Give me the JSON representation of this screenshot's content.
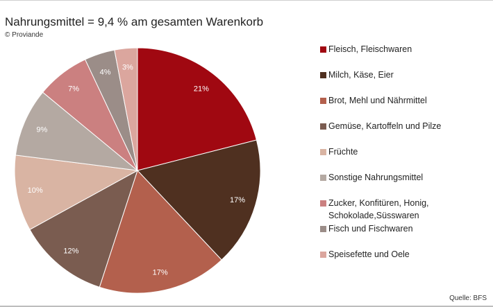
{
  "header": {
    "title": "Nahrungsmittel = 9,4 % am gesamten Warenkorb",
    "credit": "© Proviande"
  },
  "footer": {
    "source": "Quelle: BFS"
  },
  "chart_data": {
    "type": "pie",
    "title": "Nahrungsmittel = 9,4 % am gesamten Warenkorb",
    "legend_position": "right",
    "start": "12 o'clock, clockwise",
    "slices": [
      {
        "label": "Fleisch, Fleischwaren",
        "value": 21,
        "display": "21%",
        "color": "#a00811",
        "label_color": "#ffffff"
      },
      {
        "label": "Milch, Käse, Eier",
        "value": 17,
        "display": "17%",
        "color": "#4f3020",
        "label_color": "#ffffff"
      },
      {
        "label": "Brot, Mehl und Nährmittel",
        "value": 17,
        "display": "17%",
        "color": "#b3604d",
        "label_color": "#ffffff"
      },
      {
        "label": "Gemüse, Kartoffeln und Pilze",
        "value": 12,
        "display": "12%",
        "color": "#7a5c50",
        "label_color": "#ffffff"
      },
      {
        "label": "Früchte",
        "value": 10,
        "display": "10%",
        "color": "#d9b4a3",
        "label_color": "#ffffff"
      },
      {
        "label": "Sonstige Nahrungsmittel",
        "value": 9,
        "display": "9%",
        "color": "#b4a9a2",
        "label_color": "#ffffff"
      },
      {
        "label": "Zucker, Konfitüren, Honig, Schokolade,Süsswaren",
        "value": 7,
        "display": "7%",
        "color": "#cb8080",
        "label_color": "#ffffff"
      },
      {
        "label": "Fisch und Fischwaren",
        "value": 4,
        "display": "4%",
        "color": "#9b8d88",
        "label_color": "#ffffff"
      },
      {
        "label": "Speisefette und Oele",
        "value": 3,
        "display": "3%",
        "color": "#dba69e",
        "label_color": "#ffffff"
      }
    ]
  }
}
